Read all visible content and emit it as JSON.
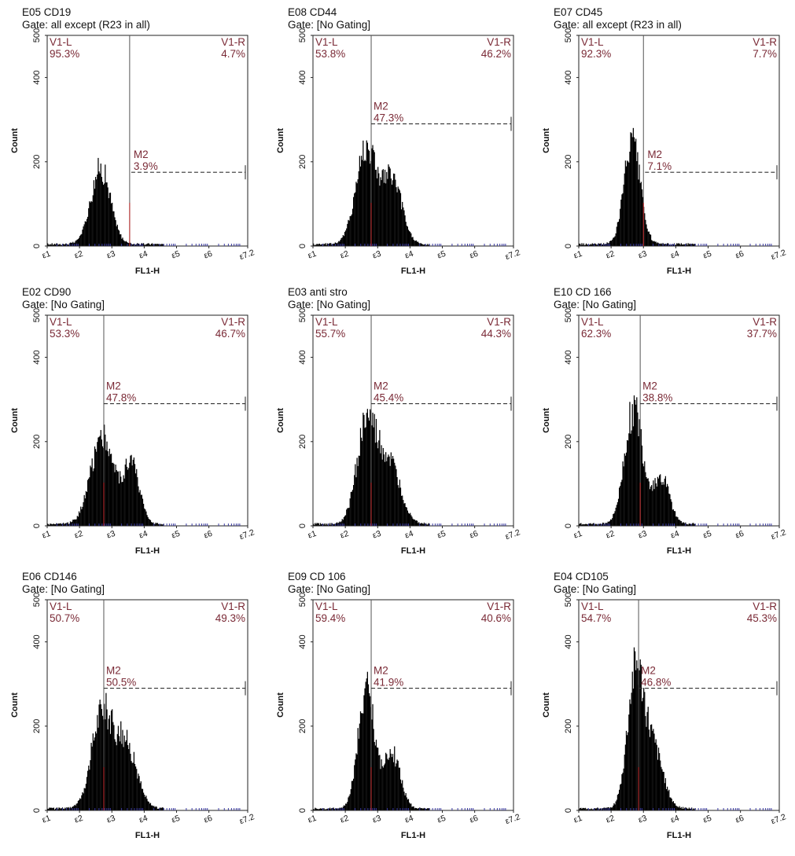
{
  "colors": {
    "fill": "#000000",
    "label": "#7a2a36",
    "divider": "#555555",
    "dash": "#333333",
    "red_tick": "#c0282a",
    "blue_tick": "#3a3aa0"
  },
  "chart_data": [
    {
      "type": "histogram",
      "title": "E05 CD19",
      "gate": "Gate: all except (R23 in all)",
      "ylabel": "Count",
      "xlabel": "FL1-H",
      "yticks": [
        "0",
        "200",
        "400",
        "500"
      ],
      "xticks": [
        "ε1",
        "ε2",
        "ε3",
        "ε4",
        "ε5",
        "ε6",
        "ε7.2"
      ],
      "ylim": [
        0,
        500
      ],
      "xlim": [
        1,
        7.2
      ],
      "x_scale": "log-decades",
      "v1_left": "V1-L",
      "v1_left_pct": "95.3%",
      "v1_right": "V1-R",
      "v1_right_pct": "4.7%",
      "divider_x": 3.55,
      "m2_label": "M2",
      "m2_pct": "3.9%",
      "m2_y": 175,
      "m2_start": 3.6,
      "peaks": [
        {
          "c": 2.65,
          "h": 180,
          "s": 0.3
        }
      ]
    },
    {
      "type": "histogram",
      "title": "E08 CD44",
      "gate": "Gate: [No Gating]",
      "ylabel": "Count",
      "xlabel": "FL1-H",
      "yticks": [
        "0",
        "200",
        "400",
        "500"
      ],
      "xticks": [
        "ε1",
        "ε2",
        "ε3",
        "ε4",
        "ε5",
        "ε6",
        "ε7.2"
      ],
      "ylim": [
        0,
        500
      ],
      "xlim": [
        1,
        7.2
      ],
      "x_scale": "log-decades",
      "v1_left": "V1-L",
      "v1_left_pct": "53.8%",
      "v1_right": "V1-R",
      "v1_right_pct": "46.2%",
      "divider_x": 2.8,
      "m2_label": "M2",
      "m2_pct": "47.3%",
      "m2_y": 290,
      "m2_start": 2.8,
      "peaks": [
        {
          "c": 2.65,
          "h": 230,
          "s": 0.32
        },
        {
          "c": 3.45,
          "h": 150,
          "s": 0.3
        }
      ]
    },
    {
      "type": "histogram",
      "title": "E07 CD45",
      "gate": "Gate: all except (R23 in all)",
      "ylabel": "Count",
      "xlabel": "FL1-H",
      "yticks": [
        "0",
        "200",
        "400",
        "500"
      ],
      "xticks": [
        "ε1",
        "ε2",
        "ε3",
        "ε4",
        "ε5",
        "ε6",
        "ε7.2"
      ],
      "ylim": [
        0,
        500
      ],
      "xlim": [
        1,
        7.2
      ],
      "x_scale": "log-decades",
      "v1_left": "V1-L",
      "v1_left_pct": "92.3%",
      "v1_right": "V1-R",
      "v1_right_pct": "7.7%",
      "divider_x": 3.0,
      "m2_label": "M2",
      "m2_pct": "7.1%",
      "m2_y": 175,
      "m2_start": 3.05,
      "peaks": [
        {
          "c": 2.65,
          "h": 240,
          "s": 0.25
        }
      ]
    },
    {
      "type": "histogram",
      "title": "E02 CD90",
      "gate": "Gate: [No Gating]",
      "ylabel": "Count",
      "xlabel": "FL1-H",
      "yticks": [
        "0",
        "200",
        "400",
        "500"
      ],
      "xticks": [
        "ε1",
        "ε2",
        "ε3",
        "ε4",
        "ε5",
        "ε6",
        "ε7.2"
      ],
      "ylim": [
        0,
        500
      ],
      "xlim": [
        1,
        7.2
      ],
      "x_scale": "log-decades",
      "v1_left": "V1-L",
      "v1_left_pct": "53.3%",
      "v1_right": "V1-R",
      "v1_right_pct": "46.7%",
      "divider_x": 2.75,
      "m2_label": "M2",
      "m2_pct": "47.8%",
      "m2_y": 290,
      "m2_start": 2.75,
      "peaks": [
        {
          "c": 2.7,
          "h": 210,
          "s": 0.35
        },
        {
          "c": 3.6,
          "h": 140,
          "s": 0.25
        }
      ]
    },
    {
      "type": "histogram",
      "title": "E03 anti stro",
      "gate": "Gate: [No Gating]",
      "ylabel": "Count",
      "xlabel": "FL1-H",
      "yticks": [
        "0",
        "200",
        "400",
        "500"
      ],
      "xticks": [
        "ε1",
        "ε2",
        "ε3",
        "ε4",
        "ε5",
        "ε6",
        "ε7.2"
      ],
      "ylim": [
        0,
        500
      ],
      "xlim": [
        1,
        7.2
      ],
      "x_scale": "log-decades",
      "v1_left": "V1-L",
      "v1_left_pct": "55.7%",
      "v1_right": "V1-R",
      "v1_right_pct": "44.3%",
      "divider_x": 2.8,
      "m2_label": "M2",
      "m2_pct": "45.4%",
      "m2_y": 290,
      "m2_start": 2.8,
      "peaks": [
        {
          "c": 2.65,
          "h": 230,
          "s": 0.3
        },
        {
          "c": 3.35,
          "h": 140,
          "s": 0.35
        }
      ]
    },
    {
      "type": "histogram",
      "title": "E10 CD 166",
      "gate": "Gate: [No Gating]",
      "ylabel": "Count",
      "xlabel": "FL1-H",
      "yticks": [
        "0",
        "200",
        "400",
        "500"
      ],
      "xticks": [
        "ε1",
        "ε2",
        "ε3",
        "ε4",
        "ε5",
        "ε6",
        "ε7.2"
      ],
      "ylim": [
        0,
        500
      ],
      "xlim": [
        1,
        7.2
      ],
      "x_scale": "log-decades",
      "v1_left": "V1-L",
      "v1_left_pct": "62.3%",
      "v1_right": "V1-R",
      "v1_right_pct": "37.7%",
      "divider_x": 2.9,
      "m2_label": "M2",
      "m2_pct": "38.8%",
      "m2_y": 290,
      "m2_start": 2.9,
      "peaks": [
        {
          "c": 2.7,
          "h": 270,
          "s": 0.28
        },
        {
          "c": 3.55,
          "h": 110,
          "s": 0.25
        }
      ]
    },
    {
      "type": "histogram",
      "title": "E06 CD146",
      "gate": "Gate: [No Gating]",
      "ylabel": "Count",
      "xlabel": "FL1-H",
      "yticks": [
        "0",
        "200",
        "400",
        "500"
      ],
      "xticks": [
        "ε1",
        "ε2",
        "ε3",
        "ε4",
        "ε5",
        "ε6",
        "ε7.2"
      ],
      "ylim": [
        0,
        500
      ],
      "xlim": [
        1,
        7.2
      ],
      "x_scale": "log-decades",
      "v1_left": "V1-L",
      "v1_left_pct": "50.7%",
      "v1_right": "V1-R",
      "v1_right_pct": "49.3%",
      "divider_x": 2.75,
      "m2_label": "M2",
      "m2_pct": "50.5%",
      "m2_y": 290,
      "m2_start": 2.75,
      "peaks": [
        {
          "c": 2.7,
          "h": 230,
          "s": 0.32
        },
        {
          "c": 3.45,
          "h": 150,
          "s": 0.32
        }
      ]
    },
    {
      "type": "histogram",
      "title": "E09 CD 106",
      "gate": "Gate: [No Gating]",
      "ylabel": "Count",
      "xlabel": "FL1-H",
      "yticks": [
        "0",
        "200",
        "400",
        "500"
      ],
      "xticks": [
        "ε1",
        "ε2",
        "ε3",
        "ε4",
        "ε5",
        "ε6",
        "ε7.2"
      ],
      "ylim": [
        0,
        500
      ],
      "xlim": [
        1,
        7.2
      ],
      "x_scale": "log-decades",
      "v1_left": "V1-L",
      "v1_left_pct": "59.4%",
      "v1_right": "V1-R",
      "v1_right_pct": "40.6%",
      "divider_x": 2.8,
      "m2_label": "M2",
      "m2_pct": "41.9%",
      "m2_y": 290,
      "m2_start": 2.8,
      "peaks": [
        {
          "c": 2.65,
          "h": 290,
          "s": 0.25
        },
        {
          "c": 3.45,
          "h": 130,
          "s": 0.25
        }
      ]
    },
    {
      "type": "histogram",
      "title": "E04 CD105",
      "gate": "Gate: [No Gating]",
      "ylabel": "Count",
      "xlabel": "FL1-H",
      "yticks": [
        "0",
        "200",
        "400",
        "500"
      ],
      "xticks": [
        "ε1",
        "ε2",
        "ε3",
        "ε4",
        "ε5",
        "ε6",
        "ε7.2"
      ],
      "ylim": [
        0,
        500
      ],
      "xlim": [
        1,
        7.2
      ],
      "x_scale": "log-decades",
      "v1_left": "V1-L",
      "v1_left_pct": "54.7%",
      "v1_right": "V1-R",
      "v1_right_pct": "45.3%",
      "divider_x": 2.85,
      "m2_label": "M2",
      "m2_pct": "46.8%",
      "m2_y": 290,
      "m2_start": 2.85,
      "peaks": [
        {
          "c": 2.75,
          "h": 310,
          "s": 0.25
        },
        {
          "c": 3.3,
          "h": 140,
          "s": 0.3
        }
      ]
    }
  ]
}
